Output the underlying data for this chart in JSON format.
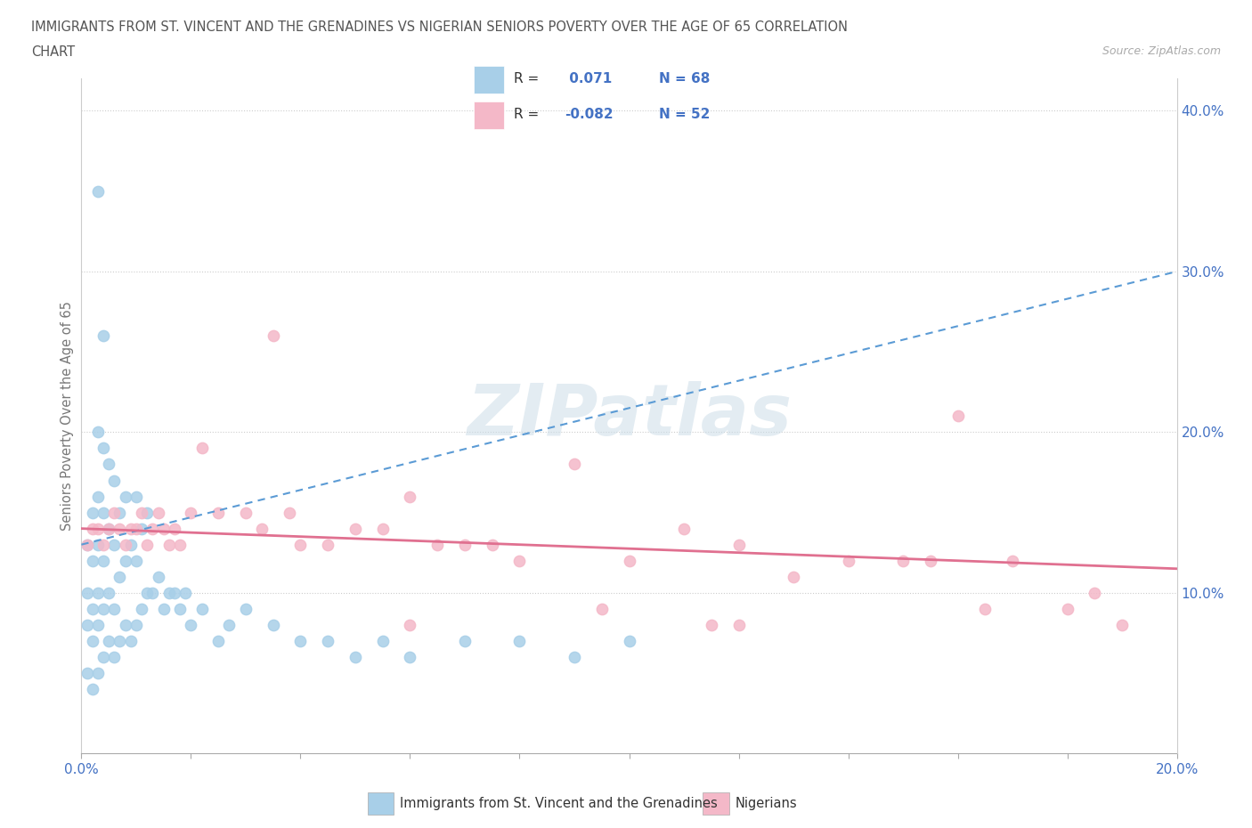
{
  "title_line1": "IMMIGRANTS FROM ST. VINCENT AND THE GRENADINES VS NIGERIAN SENIORS POVERTY OVER THE AGE OF 65 CORRELATION",
  "title_line2": "CHART",
  "source": "Source: ZipAtlas.com",
  "watermark": "ZIPatlas",
  "ylabel": "Seniors Poverty Over the Age of 65",
  "xlim": [
    0.0,
    0.2
  ],
  "ylim": [
    0.0,
    0.42
  ],
  "xtick_positions": [
    0.0,
    0.02,
    0.04,
    0.06,
    0.08,
    0.1,
    0.12,
    0.14,
    0.16,
    0.18,
    0.2
  ],
  "ytick_positions_right": [
    0.1,
    0.2,
    0.3,
    0.4
  ],
  "blue_color": "#a8cfe8",
  "pink_color": "#f4b8c8",
  "blue_line_color": "#5b9bd5",
  "pink_line_color": "#e07090",
  "R_blue": 0.071,
  "N_blue": 68,
  "R_pink": -0.082,
  "N_pink": 52,
  "legend_label_blue": "Immigrants from St. Vincent and the Grenadines",
  "legend_label_pink": "Nigerians",
  "blue_line_y0": 0.13,
  "blue_line_y1": 0.3,
  "pink_line_y0": 0.14,
  "pink_line_y1": 0.115,
  "grid_color": "#cccccc",
  "background_color": "#ffffff",
  "title_color": "#555555",
  "axis_label_color": "#777777",
  "tick_label_color": "#4472c4"
}
